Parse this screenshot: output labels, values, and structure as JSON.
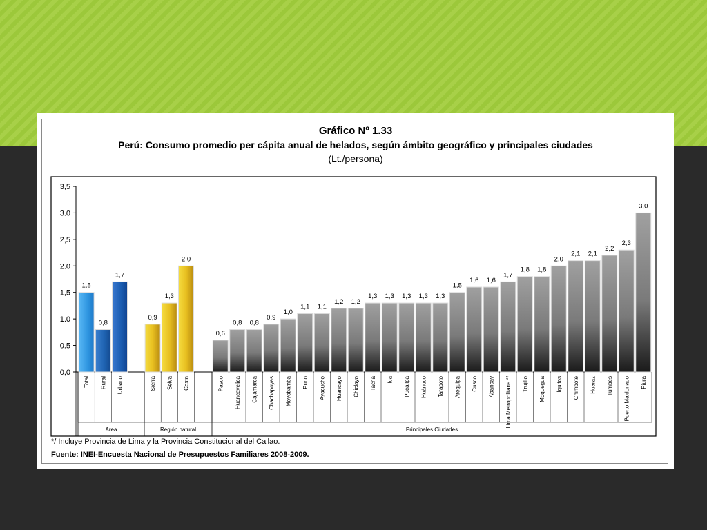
{
  "chart_data": {
    "type": "bar",
    "title": "Gráfico Nº 1.33",
    "subtitle": "Perú: Consumo promedio per cápita anual de helados, según ámbito geográfico y principales ciudades",
    "unit": "(Lt./persona)",
    "ylim": [
      0,
      3.5
    ],
    "yticks": [
      "0,0",
      "0.5",
      "1.0",
      "1,5",
      "2.0",
      "2,5",
      "3.0",
      "3,5"
    ],
    "grid": false,
    "groups": [
      {
        "name": "Area",
        "categories": [
          "Total",
          "Rural",
          "Urbano"
        ],
        "values": [
          1.5,
          0.8,
          1.7
        ],
        "labels": [
          "1,5",
          "0,8",
          "1,7"
        ],
        "colors": [
          "#3aa0e8",
          "#1e6ab8",
          "#1a5fb0"
        ]
      },
      {
        "name": "Región natural",
        "categories": [
          "Sierra",
          "Selva",
          "Costa"
        ],
        "values": [
          0.9,
          1.3,
          2.0
        ],
        "labels": [
          "0,9",
          "1,3",
          "2,0"
        ],
        "colors": [
          "#f0c818",
          "#e8c030",
          "#e2b420"
        ]
      },
      {
        "name": "Principales Ciudades",
        "categories": [
          "Pasco",
          "Huancavelica",
          "Cajamarca",
          "Chachapoyas",
          "Moyobamba",
          "Puno",
          "Ayacucho",
          "Huancayo",
          "Chiclayo",
          "Tacna",
          "Ica",
          "Pucallpa",
          "Huánuco",
          "Tarapoto",
          "Arequipa",
          "Cusco",
          "Abancay",
          "Lima Metropolitana */",
          "Trujillo",
          "Moquegua",
          "Iquitos",
          "Chimbote",
          "Huaraz",
          "Tumbes",
          "Puerto Maldonado",
          "Piura"
        ],
        "values": [
          0.6,
          0.8,
          0.8,
          0.9,
          1.0,
          1.1,
          1.1,
          1.2,
          1.2,
          1.3,
          1.3,
          1.3,
          1.3,
          1.3,
          1.5,
          1.6,
          1.6,
          1.7,
          1.8,
          1.8,
          2.0,
          2.1,
          2.1,
          2.2,
          2.3,
          3.0
        ],
        "labels": [
          "0,6",
          "0,8",
          "0,8",
          "0,9",
          "1,0",
          "1,1",
          "1,1",
          "1,2",
          "1,2",
          "1,3",
          "1,3",
          "1,3",
          "1,3",
          "1,3",
          "1,5",
          "1,6",
          "1,6",
          "1,7",
          "1,8",
          "1,8",
          "2,0",
          "2,1",
          "2,1",
          "2,2",
          "2,3",
          "3,0"
        ],
        "colors": [
          "#8a8a8a"
        ]
      }
    ]
  },
  "notes": {
    "footnote": "*/ Incluye Provincia de Lima y la Provincia Constitucional del Callao.",
    "source": "Fuente: INEI-Encuesta Nacional de Presupuestos Familiares 2008-2009."
  }
}
